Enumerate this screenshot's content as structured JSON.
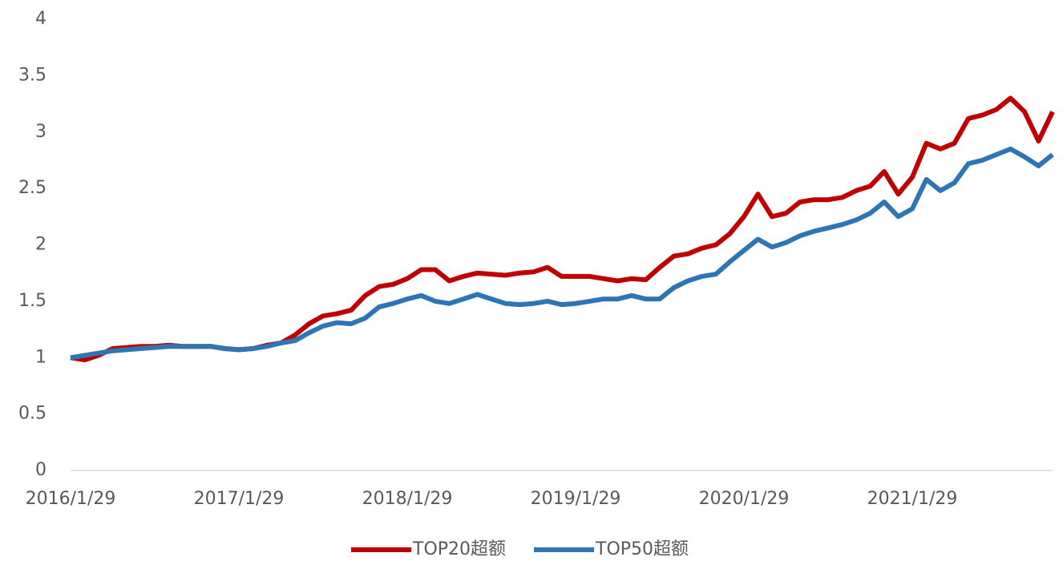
{
  "chart_data": {
    "type": "line",
    "categories": [
      "2016/1/29",
      null,
      null,
      null,
      null,
      null,
      null,
      null,
      null,
      null,
      null,
      null,
      "2017/1/29",
      null,
      null,
      null,
      null,
      null,
      null,
      null,
      null,
      null,
      null,
      null,
      "2018/1/29",
      null,
      null,
      null,
      null,
      null,
      null,
      null,
      null,
      null,
      null,
      null,
      "2019/1/29",
      null,
      null,
      null,
      null,
      null,
      null,
      null,
      null,
      null,
      null,
      null,
      "2020/1/29",
      null,
      null,
      null,
      null,
      null,
      null,
      null,
      null,
      null,
      null,
      null,
      "2021/1/29",
      null,
      null,
      null,
      null,
      null,
      null,
      null,
      null,
      null,
      null
    ],
    "series": [
      {
        "name": "TOP20超额",
        "color": "#c00000",
        "values": [
          1.0,
          0.98,
          1.02,
          1.08,
          1.09,
          1.1,
          1.1,
          1.11,
          1.1,
          1.1,
          1.1,
          1.08,
          1.07,
          1.08,
          1.11,
          1.13,
          1.2,
          1.3,
          1.37,
          1.39,
          1.42,
          1.55,
          1.63,
          1.65,
          1.7,
          1.78,
          1.78,
          1.68,
          1.72,
          1.75,
          1.74,
          1.73,
          1.75,
          1.76,
          1.8,
          1.72,
          1.72,
          1.72,
          1.7,
          1.68,
          1.7,
          1.69,
          1.8,
          1.9,
          1.92,
          1.97,
          2.0,
          2.1,
          2.25,
          2.45,
          2.25,
          2.28,
          2.38,
          2.4,
          2.4,
          2.42,
          2.48,
          2.52,
          2.65,
          2.45,
          2.6,
          2.9,
          2.85,
          2.9,
          3.12,
          3.15,
          3.2,
          3.3,
          3.18,
          2.92,
          3.18
        ]
      },
      {
        "name": "TOP50超额",
        "color": "#2e75b6",
        "values": [
          1.0,
          1.02,
          1.04,
          1.06,
          1.07,
          1.08,
          1.09,
          1.1,
          1.1,
          1.1,
          1.1,
          1.08,
          1.07,
          1.08,
          1.1,
          1.13,
          1.15,
          1.22,
          1.28,
          1.31,
          1.3,
          1.35,
          1.45,
          1.48,
          1.52,
          1.55,
          1.5,
          1.48,
          1.52,
          1.56,
          1.52,
          1.48,
          1.47,
          1.48,
          1.5,
          1.47,
          1.48,
          1.5,
          1.52,
          1.52,
          1.55,
          1.52,
          1.52,
          1.62,
          1.68,
          1.72,
          1.74,
          1.85,
          1.95,
          2.05,
          1.98,
          2.02,
          2.08,
          2.12,
          2.15,
          2.18,
          2.22,
          2.28,
          2.38,
          2.25,
          2.32,
          2.58,
          2.48,
          2.55,
          2.72,
          2.75,
          2.8,
          2.85,
          2.78,
          2.7,
          2.8
        ]
      }
    ],
    "ylim": [
      0,
      4
    ],
    "yticks": [
      0,
      0.5,
      1,
      1.5,
      2,
      2.5,
      3,
      3.5,
      4
    ],
    "grid": false,
    "legend": "bottom"
  }
}
